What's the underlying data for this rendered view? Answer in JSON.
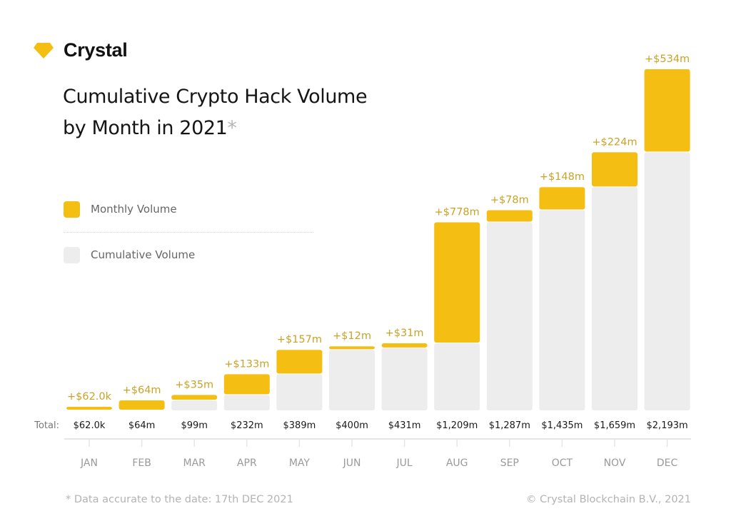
{
  "brand": {
    "name": "Crystal",
    "icon": "gem-icon",
    "color": "#F5BE13"
  },
  "header": {
    "title_line1": "Cumulative Crypto Hack Volume",
    "title_line2": "by Month in 2021",
    "title_asterisk": "*"
  },
  "legend": [
    {
      "label": "Monthly Volume",
      "color": "#F5BE13"
    },
    {
      "label": "Cumulative Volume",
      "color": "#EDEDED"
    }
  ],
  "footer": {
    "note": "* Data accurate to the date: 17th DEC 2021",
    "copyright": "© Crystal Blockchain B.V., 2021"
  },
  "chart_data": {
    "type": "bar",
    "stacked": true,
    "title": "Cumulative Crypto Hack Volume by Month in 2021",
    "xlabel": "",
    "ylabel": "",
    "units": "USD millions",
    "categories": [
      "JAN",
      "FEB",
      "MAR",
      "APR",
      "MAY",
      "JUN",
      "JUL",
      "AUG",
      "SEP",
      "OCT",
      "NOV",
      "DEC"
    ],
    "series": [
      {
        "name": "Cumulative Volume",
        "color": "#EDEDED",
        "values": [
          0,
          0.062,
          64,
          99,
          232,
          389,
          400,
          431,
          1209,
          1287,
          1435,
          1659
        ]
      },
      {
        "name": "Monthly Volume",
        "color": "#F5BE13",
        "values": [
          0.062,
          64,
          35,
          133,
          157,
          12,
          31,
          778,
          78,
          148,
          224,
          534
        ]
      }
    ],
    "monthly_labels": [
      "+$62.0k",
      "+$64m",
      "+$35m",
      "+$133m",
      "+$157m",
      "+$12m",
      "+$31m",
      "+$778m",
      "+$78m",
      "+$148m",
      "+$224m",
      "+$534m"
    ],
    "totals_label": "Total:",
    "totals": [
      "$62.0k",
      "$64m",
      "$99m",
      "$232m",
      "$389m",
      "$400m",
      "$431m",
      "$1,209m",
      "$1,287m",
      "$1,435m",
      "$1,659m",
      "$2,193m"
    ],
    "ylim": [
      0,
      2193
    ],
    "grid": false,
    "legend_position": "left",
    "label_color": "#C9A227",
    "axis_color": "#E6E6E6",
    "tick_label_color": "#9A9A9A"
  }
}
